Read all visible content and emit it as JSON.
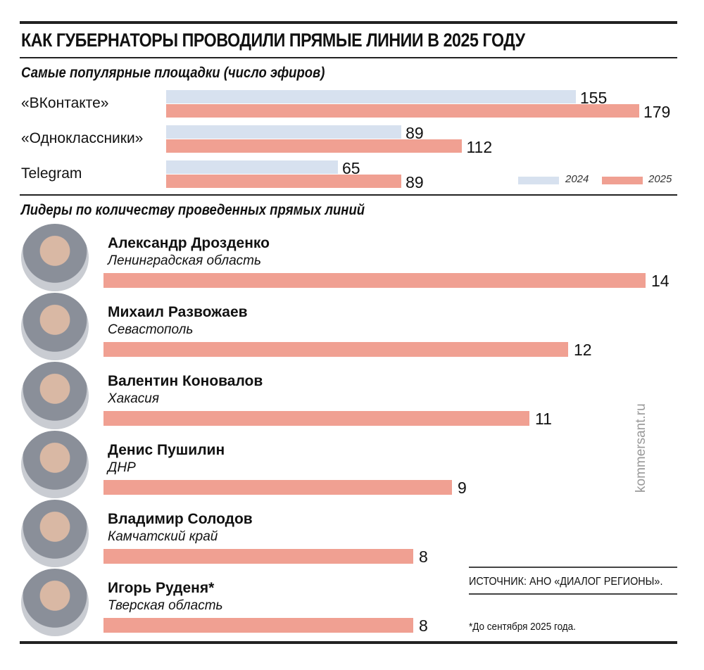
{
  "title": "КАК ГУБЕРНАТОРЫ ПРОВОДИЛИ ПРЯМЫЕ ЛИНИИ В 2025 ГОДУ",
  "colors": {
    "y2024": "#d7e1ef",
    "y2025": "#f0a092"
  },
  "chart_data": [
    {
      "type": "bar",
      "orientation": "horizontal",
      "title": "Самые популярные площадки (число эфиров)",
      "categories": [
        "«ВКонтакте»",
        "«Одноклассники»",
        "Telegram"
      ],
      "series": [
        {
          "name": "2024",
          "values": [
            155,
            89,
            65
          ]
        },
        {
          "name": "2025",
          "values": [
            179,
            112,
            89
          ]
        }
      ],
      "legend": "bottom-right"
    },
    {
      "type": "bar",
      "orientation": "horizontal",
      "title": "Лидеры по количеству проведенных прямых линий",
      "items": [
        {
          "name": "Александр Дрозденко",
          "region": "Ленинградская область",
          "value": 14
        },
        {
          "name": "Михаил Развожаев",
          "region": "Севастополь",
          "value": 12
        },
        {
          "name": "Валентин Коновалов",
          "region": "Хакасия",
          "value": 11
        },
        {
          "name": "Денис Пушилин",
          "region": "ДНР",
          "value": 9
        },
        {
          "name": "Владимир Солодов",
          "region": "Камчатский край",
          "value": 8
        },
        {
          "name": "Игорь Руденя*",
          "region": "Тверская область",
          "value": 8
        }
      ]
    }
  ],
  "source": "ИСТОЧНИК: АНО «ДИАЛОГ РЕГИОНЫ».",
  "footnote": "*До сентября 2025 года.",
  "watermark": "kommersant.ru"
}
